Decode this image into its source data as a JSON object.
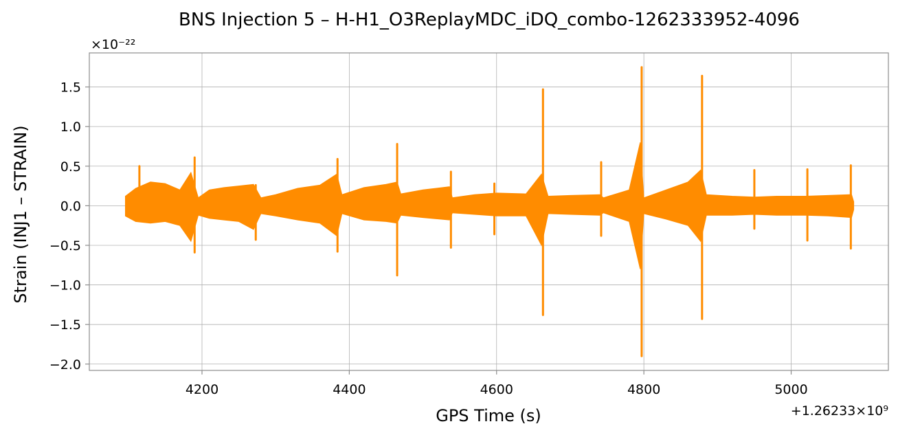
{
  "chart_data": {
    "type": "line",
    "title": "BNS Injection 5 – H-H1_O3ReplayMDC_iDQ_combo-1262333952-4096",
    "xlabel": "GPS Time (s)",
    "ylabel": "Strain (INJ1 – STRAIN)",
    "x_offset_label": "+1.26233×10⁹",
    "x_offset_value": 1262330000,
    "y_scale_label": "×10⁻²²",
    "y_scale_value": 1e-22,
    "xlim": [
      4047,
      5132
    ],
    "ylim": [
      -2.08,
      1.93
    ],
    "x_ticks": [
      4200,
      4400,
      4600,
      4800,
      5000
    ],
    "x_tick_labels": [
      "4200",
      "4400",
      "4600",
      "4800",
      "5000"
    ],
    "y_ticks": [
      -2.0,
      -1.5,
      -1.0,
      -0.5,
      0.0,
      0.5,
      1.0,
      1.5
    ],
    "y_tick_labels": [
      "−2.0",
      "−1.5",
      "−1.0",
      "−0.5",
      "0.0",
      "0.5",
      "1.0",
      "1.5"
    ],
    "grid": true,
    "color": "#ff8c00",
    "envelope": {
      "x": [
        4096,
        4110,
        4130,
        4150,
        4170,
        4185,
        4195,
        4210,
        4230,
        4250,
        4270,
        4280,
        4300,
        4330,
        4360,
        4383,
        4390,
        4420,
        4450,
        4465,
        4470,
        4500,
        4536,
        4540,
        4570,
        4600,
        4640,
        4661,
        4670,
        4700,
        4740,
        4745,
        4780,
        4795,
        4800,
        4830,
        4860,
        4877,
        4885,
        4920,
        4950,
        4980,
        5020,
        5050,
        5082,
        5085
      ],
      "upper": [
        0.12,
        0.22,
        0.3,
        0.28,
        0.2,
        0.42,
        0.1,
        0.2,
        0.23,
        0.25,
        0.27,
        0.1,
        0.14,
        0.22,
        0.26,
        0.4,
        0.14,
        0.23,
        0.27,
        0.3,
        0.15,
        0.2,
        0.24,
        0.1,
        0.14,
        0.16,
        0.15,
        0.4,
        0.12,
        0.13,
        0.14,
        0.1,
        0.2,
        0.8,
        0.1,
        0.2,
        0.3,
        0.45,
        0.14,
        0.12,
        0.11,
        0.12,
        0.12,
        0.13,
        0.14,
        0.05
      ],
      "lower": [
        -0.13,
        -0.2,
        -0.22,
        -0.2,
        -0.25,
        -0.45,
        -0.12,
        -0.16,
        -0.18,
        -0.2,
        -0.3,
        -0.1,
        -0.13,
        -0.18,
        -0.22,
        -0.38,
        -0.1,
        -0.18,
        -0.2,
        -0.22,
        -0.12,
        -0.15,
        -0.18,
        -0.09,
        -0.11,
        -0.13,
        -0.13,
        -0.5,
        -0.1,
        -0.11,
        -0.12,
        -0.09,
        -0.2,
        -0.8,
        -0.1,
        -0.17,
        -0.25,
        -0.45,
        -0.12,
        -0.12,
        -0.11,
        -0.12,
        -0.12,
        -0.13,
        -0.15,
        -0.05
      ]
    },
    "spikes": [
      {
        "x": 4115,
        "max": 0.5,
        "min": -0.12
      },
      {
        "x": 4190,
        "max": 0.61,
        "min": -0.59
      },
      {
        "x": 4273,
        "max": 0.26,
        "min": -0.43
      },
      {
        "x": 4384,
        "max": 0.59,
        "min": -0.58
      },
      {
        "x": 4465,
        "max": 0.78,
        "min": -0.88
      },
      {
        "x": 4538,
        "max": 0.43,
        "min": -0.53
      },
      {
        "x": 4597,
        "max": 0.28,
        "min": -0.36
      },
      {
        "x": 4663,
        "max": 1.47,
        "min": -1.38
      },
      {
        "x": 4742,
        "max": 0.55,
        "min": -0.38
      },
      {
        "x": 4797,
        "max": 1.75,
        "min": -1.9
      },
      {
        "x": 4879,
        "max": 1.64,
        "min": -1.43
      },
      {
        "x": 4950,
        "max": 0.45,
        "min": -0.29
      },
      {
        "x": 5022,
        "max": 0.46,
        "min": -0.44
      },
      {
        "x": 5081,
        "max": 0.51,
        "min": -0.54
      }
    ]
  }
}
